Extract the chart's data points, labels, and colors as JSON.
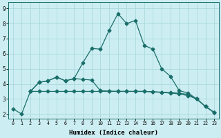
{
  "xlabel": "Humidex (Indice chaleur)",
  "background_color": "#cceef2",
  "grid_color": "#aad8de",
  "line_color": "#1a6e6a",
  "xlim": [
    -0.5,
    23.5
  ],
  "ylim": [
    1.7,
    9.4
  ],
  "yticks": [
    2,
    3,
    4,
    5,
    6,
    7,
    8,
    9
  ],
  "xticks": [
    0,
    1,
    2,
    3,
    4,
    5,
    6,
    7,
    8,
    9,
    10,
    11,
    12,
    13,
    14,
    15,
    16,
    17,
    18,
    19,
    20,
    21,
    22,
    23
  ],
  "line1_x": [
    0,
    1,
    2,
    3,
    4,
    5,
    6,
    7,
    8,
    9,
    10,
    11,
    12,
    13,
    14,
    15,
    16,
    17,
    18,
    19,
    20,
    21,
    22,
    23
  ],
  "line1_y": [
    2.35,
    2.0,
    3.5,
    4.1,
    4.2,
    4.45,
    4.2,
    4.35,
    5.4,
    6.35,
    6.3,
    7.55,
    8.65,
    8.0,
    8.2,
    6.55,
    6.3,
    5.0,
    4.5,
    3.55,
    3.4,
    3.0,
    2.5,
    2.1
  ],
  "line2_x": [
    2,
    3,
    4,
    5,
    6,
    7,
    8,
    9,
    10,
    11,
    12,
    13,
    14,
    15,
    16,
    17,
    18,
    19,
    20,
    21,
    22,
    23
  ],
  "line2_y": [
    3.5,
    4.1,
    4.2,
    4.45,
    4.2,
    4.35,
    4.3,
    4.25,
    3.55,
    3.52,
    3.5,
    3.5,
    3.5,
    3.5,
    3.48,
    3.45,
    3.42,
    3.38,
    3.3,
    3.0,
    2.5,
    2.1
  ],
  "line3_x": [
    2,
    3,
    4,
    5,
    6,
    7,
    8,
    9,
    10,
    11,
    12,
    13,
    14,
    15,
    16,
    17,
    18,
    19,
    20,
    21,
    22,
    23
  ],
  "line3_y": [
    3.5,
    3.5,
    3.5,
    3.5,
    3.5,
    3.5,
    3.5,
    3.5,
    3.5,
    3.5,
    3.5,
    3.5,
    3.5,
    3.5,
    3.47,
    3.43,
    3.39,
    3.33,
    3.22,
    3.0,
    2.5,
    2.1
  ],
  "marker_size": 2.5,
  "linewidth": 0.9
}
